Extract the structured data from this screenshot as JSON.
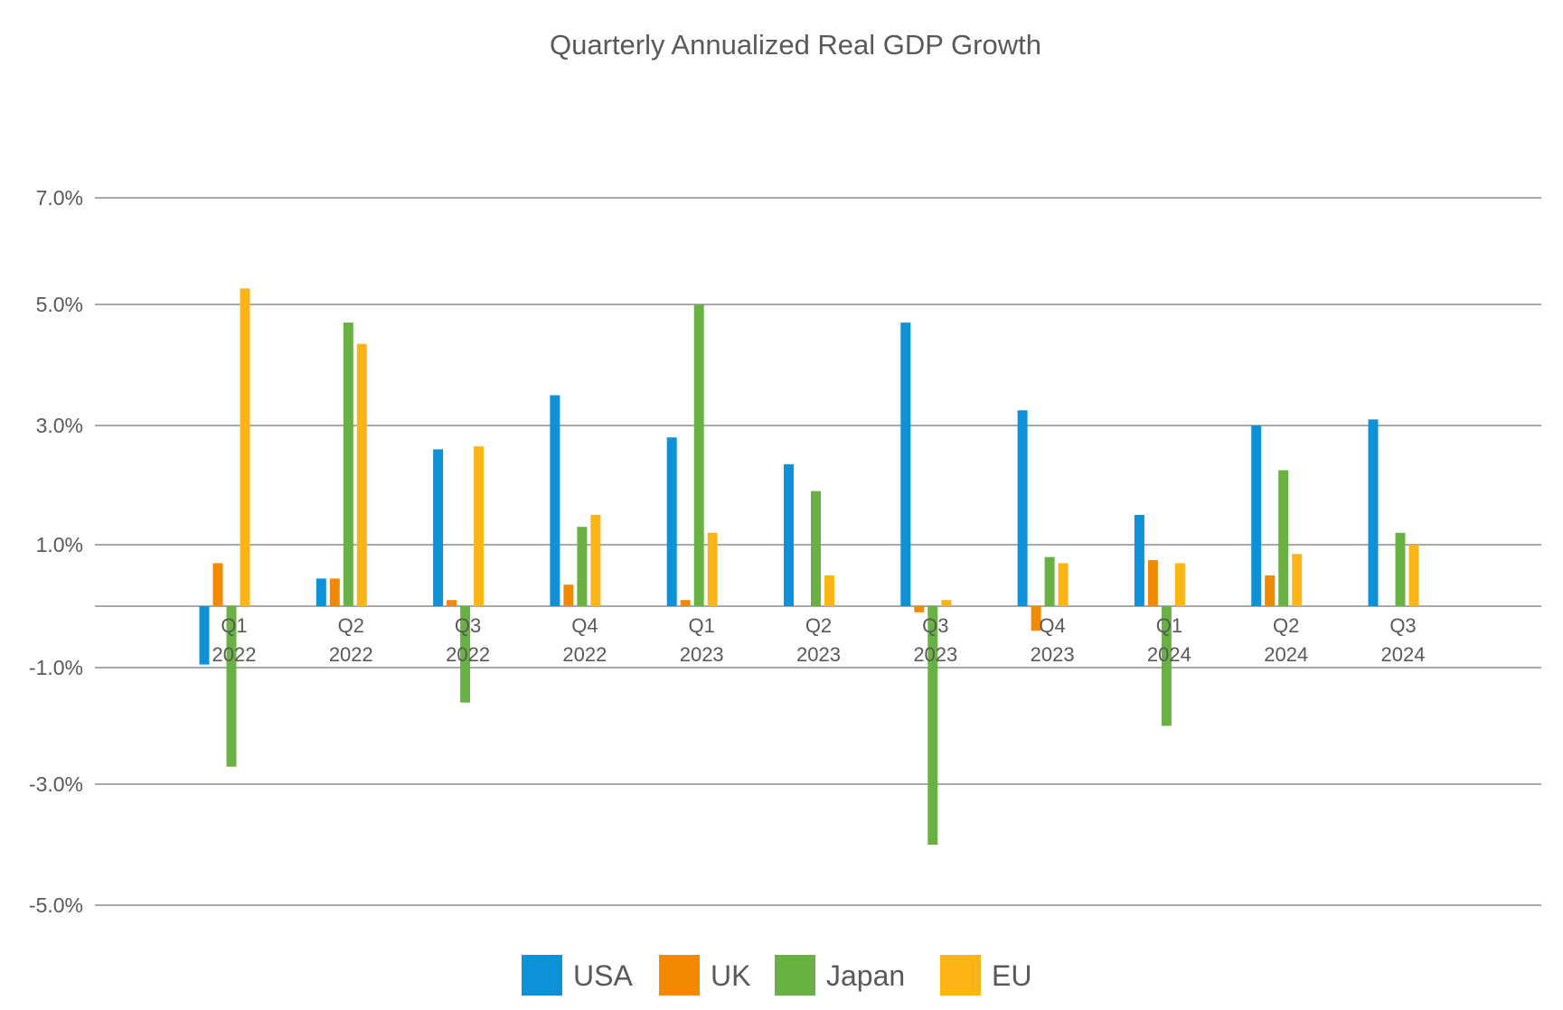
{
  "chart_data": {
    "type": "bar",
    "title": "Quarterly Annualized Real GDP Growth",
    "xlabel": "",
    "ylabel": "",
    "ylim": [
      -5.0,
      7.0
    ],
    "yticks": [
      7.0,
      5.0,
      3.0,
      1.0,
      -1.0,
      -3.0,
      -5.0
    ],
    "ytick_labels": [
      "7.0%",
      "5.0%",
      "3.0%",
      "1.0%",
      "-1.0%",
      "-3.0%",
      "-5.0%"
    ],
    "grid": true,
    "legend_position": "bottom",
    "categories": [
      [
        "Q1",
        "2022"
      ],
      [
        "Q2",
        "2022"
      ],
      [
        "Q3",
        "2022"
      ],
      [
        "Q4",
        "2022"
      ],
      [
        "Q1",
        "2023"
      ],
      [
        "Q2",
        "2023"
      ],
      [
        "Q3",
        "2023"
      ],
      [
        "Q4",
        "2023"
      ],
      [
        "Q1",
        "2024"
      ],
      [
        "Q2",
        "2024"
      ],
      [
        "Q3",
        "2024"
      ]
    ],
    "series": [
      {
        "name": "USA",
        "color": "#0f91d8",
        "values": [
          -0.95,
          0.45,
          2.6,
          3.5,
          2.8,
          2.35,
          4.7,
          3.25,
          1.5,
          3.0,
          3.1
        ]
      },
      {
        "name": "UK",
        "color": "#f28a00",
        "values": [
          0.7,
          0.45,
          0.1,
          0.35,
          0.1,
          0.0,
          -0.1,
          -0.4,
          0.75,
          0.5,
          0.0
        ]
      },
      {
        "name": "Japan",
        "color": "#6ab144",
        "values": [
          -2.7,
          4.7,
          -1.6,
          1.3,
          5.0,
          1.9,
          -4.0,
          0.8,
          -2.0,
          2.25,
          1.2
        ]
      },
      {
        "name": "EU",
        "color": "#fdb515",
        "values": [
          5.3,
          4.35,
          2.65,
          1.5,
          1.2,
          0.5,
          0.1,
          0.7,
          0.7,
          0.85,
          1.0
        ]
      }
    ]
  }
}
